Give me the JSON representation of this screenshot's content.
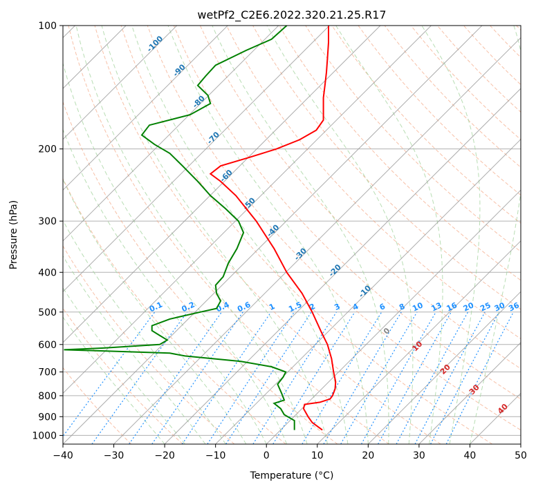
{
  "chart_data": {
    "type": "line",
    "title": "wetPf2_C2E6.2022.320.21.25.R17",
    "xlabel": "Temperature (°C)",
    "ylabel": "Pressure (hPa)",
    "xlim": [
      -40,
      50
    ],
    "ylim": [
      1050,
      100
    ],
    "y_scale": "log",
    "grid": true,
    "x_ticks": [
      -40,
      -30,
      -20,
      -10,
      0,
      10,
      20,
      30,
      40,
      50
    ],
    "y_ticks": [
      100,
      200,
      300,
      400,
      500,
      600,
      700,
      800,
      900,
      1000
    ],
    "colors": {
      "temperature": "#ff0000",
      "dewpoint": "#008000",
      "isotherm": "#999999",
      "dry_adiabat": "#f4a582",
      "moist_adiabat": "#a6d5a0",
      "mixing_ratio": "#1e90ff",
      "isotherm_label": "#1f77b4",
      "dry_label": "#d62728"
    },
    "series": [
      {
        "values_note": "",
        "points": [
          {
            "p": 970,
            "t": 11.0
          },
          {
            "p": 930,
            "t": 9.0
          },
          {
            "p": 900,
            "t": 8.2
          },
          {
            "p": 860,
            "t": 7.3
          },
          {
            "p": 840,
            "t": 7.5
          },
          {
            "p": 830,
            "t": 10.5
          },
          {
            "p": 815,
            "t": 12.5
          },
          {
            "p": 800,
            "t": 13.0
          },
          {
            "p": 770,
            "t": 13.5
          },
          {
            "p": 740,
            "t": 13.6
          },
          {
            "p": 700,
            "t": 13.2
          },
          {
            "p": 650,
            "t": 12.8
          },
          {
            "p": 600,
            "t": 12.0
          },
          {
            "p": 560,
            "t": 10.8
          },
          {
            "p": 500,
            "t": 9.0
          },
          {
            "p": 450,
            "t": 7.0
          },
          {
            "p": 400,
            "t": 4.0
          },
          {
            "p": 350,
            "t": 1.5
          },
          {
            "p": 300,
            "t": -2.0
          },
          {
            "p": 260,
            "t": -6.0
          },
          {
            "p": 240,
            "t": -9.0
          },
          {
            "p": 230,
            "t": -11.0
          },
          {
            "p": 220,
            "t": -9.0
          },
          {
            "p": 210,
            "t": -3.5
          },
          {
            "p": 200,
            "t": 2.0
          },
          {
            "p": 190,
            "t": 6.5
          },
          {
            "p": 180,
            "t": 9.8
          },
          {
            "p": 170,
            "t": 11.2
          },
          {
            "p": 160,
            "t": 11.2
          },
          {
            "p": 150,
            "t": 11.2
          },
          {
            "p": 140,
            "t": 11.5
          },
          {
            "p": 130,
            "t": 11.8
          },
          {
            "p": 120,
            "t": 12.0
          },
          {
            "p": 110,
            "t": 12.2
          },
          {
            "p": 100,
            "t": 12.2
          }
        ]
      },
      {
        "values_note": "",
        "points": [
          {
            "p": 970,
            "t": 5.5
          },
          {
            "p": 920,
            "t": 5.5
          },
          {
            "p": 890,
            "t": 3.5
          },
          {
            "p": 860,
            "t": 2.8
          },
          {
            "p": 835,
            "t": 1.5
          },
          {
            "p": 820,
            "t": 3.5
          },
          {
            "p": 790,
            "t": 3.0
          },
          {
            "p": 750,
            "t": 2.2
          },
          {
            "p": 720,
            "t": 3.3
          },
          {
            "p": 700,
            "t": 3.8
          },
          {
            "p": 680,
            "t": 1.0
          },
          {
            "p": 660,
            "t": -5.0
          },
          {
            "p": 640,
            "t": -16.0
          },
          {
            "p": 630,
            "t": -19.0
          },
          {
            "p": 622,
            "t": -32.0
          },
          {
            "p": 618,
            "t": -39.8
          },
          {
            "p": 612,
            "t": -32.0
          },
          {
            "p": 600,
            "t": -21.0
          },
          {
            "p": 585,
            "t": -19.5
          },
          {
            "p": 570,
            "t": -21.0
          },
          {
            "p": 555,
            "t": -22.5
          },
          {
            "p": 540,
            "t": -22.5
          },
          {
            "p": 520,
            "t": -19.0
          },
          {
            "p": 500,
            "t": -13.0
          },
          {
            "p": 490,
            "t": -9.8
          },
          {
            "p": 470,
            "t": -9.0
          },
          {
            "p": 450,
            "t": -9.8
          },
          {
            "p": 430,
            "t": -10.0
          },
          {
            "p": 410,
            "t": -8.5
          },
          {
            "p": 380,
            "t": -7.5
          },
          {
            "p": 350,
            "t": -5.8
          },
          {
            "p": 320,
            "t": -4.5
          },
          {
            "p": 300,
            "t": -5.5
          },
          {
            "p": 280,
            "t": -8.0
          },
          {
            "p": 260,
            "t": -11.0
          },
          {
            "p": 240,
            "t": -13.5
          },
          {
            "p": 220,
            "t": -16.5
          },
          {
            "p": 205,
            "t": -19.0
          },
          {
            "p": 195,
            "t": -22.0
          },
          {
            "p": 185,
            "t": -24.5
          },
          {
            "p": 175,
            "t": -23.0
          },
          {
            "p": 165,
            "t": -15.0
          },
          {
            "p": 155,
            "t": -11.0
          },
          {
            "p": 148,
            "t": -11.5
          },
          {
            "p": 140,
            "t": -13.5
          },
          {
            "p": 133,
            "t": -12.0
          },
          {
            "p": 125,
            "t": -10.0
          },
          {
            "p": 115,
            "t": -4.0
          },
          {
            "p": 108,
            "t": 1.0
          },
          {
            "p": 100,
            "t": 4.0
          }
        ]
      }
    ],
    "isotherm_labels": [
      "-100",
      "-90",
      "-80",
      "-70",
      "-60",
      "-50",
      "-40",
      "-30",
      "-20",
      "-10"
    ],
    "isotherm_label_values": [
      -100,
      -90,
      -80,
      -70,
      -60,
      -50,
      -40,
      -30,
      -20,
      -10
    ],
    "mixing_ratio_labels": [
      "0.1",
      "0.2",
      "0.4",
      "0.6",
      "1",
      "1.5",
      "2",
      "3",
      "4",
      "6",
      "8",
      "10",
      "13",
      "16",
      "20",
      "25",
      "30",
      "36"
    ],
    "mixing_ratio_values": [
      0.1,
      0.2,
      0.4,
      0.6,
      1,
      1.5,
      2,
      3,
      4,
      6,
      8,
      10,
      13,
      16,
      20,
      25,
      30,
      36
    ],
    "dry_adiabat_labels": [
      "0",
      "10",
      "20",
      "30",
      "40"
    ],
    "dry_adiabat_values": [
      0,
      10,
      20,
      30,
      40
    ]
  }
}
